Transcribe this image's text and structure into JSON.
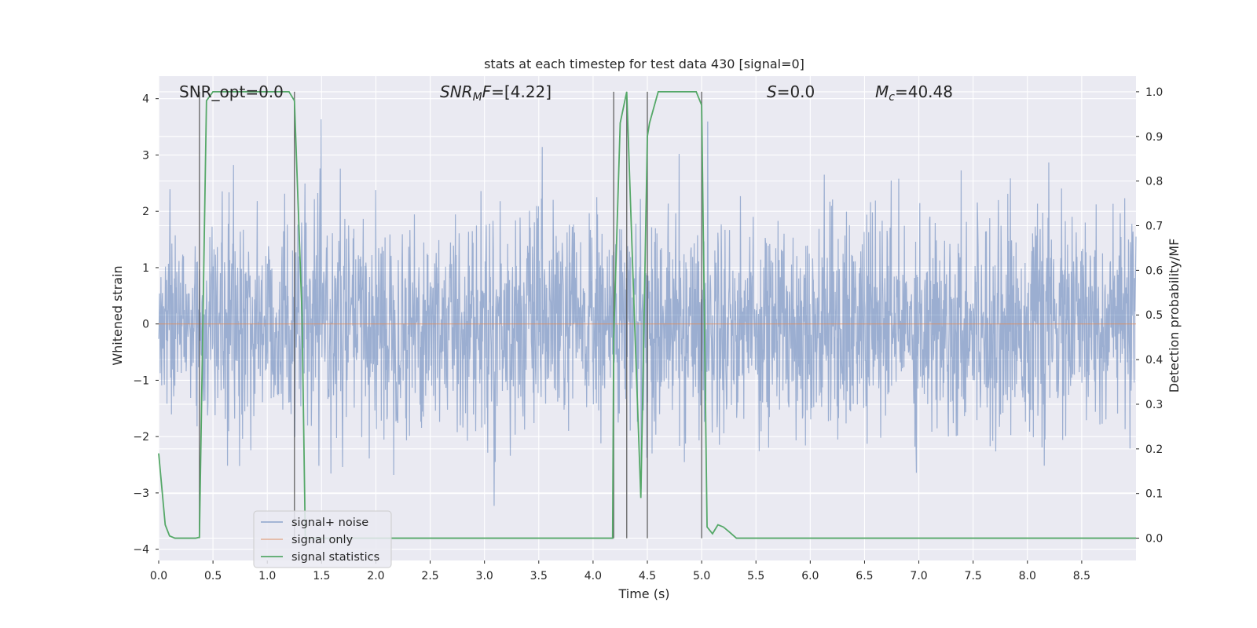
{
  "chart_data": {
    "type": "line",
    "title": "stats at each timestep for test data 430 [signal=0]",
    "xlabel": "Time (s)",
    "ylabel": "Whitened strain",
    "y2label": "Detection probability/MF",
    "xlim": [
      0.0,
      9.0
    ],
    "ylim": [
      -4.2,
      4.4
    ],
    "y2lim": [
      -0.05,
      1.035
    ],
    "xticks": [
      "0.0",
      "0.5",
      "1.0",
      "1.5",
      "2.0",
      "2.5",
      "3.0",
      "3.5",
      "4.0",
      "4.5",
      "5.0",
      "5.5",
      "6.0",
      "6.5",
      "7.0",
      "7.5",
      "8.0",
      "8.5"
    ],
    "yticks": [
      "4",
      "3",
      "2",
      "1",
      "0",
      "−1",
      "−2",
      "−3",
      "−4"
    ],
    "y2ticks": [
      "1.0",
      "0.9",
      "0.8",
      "0.7",
      "0.6",
      "0.5",
      "0.4",
      "0.3",
      "0.2",
      "0.1",
      "0.0"
    ],
    "grid": true,
    "legend_placement": "lower-left",
    "annotations": [
      {
        "id": "snr-opt",
        "text": "SNR_opt=0.0"
      },
      {
        "id": "snr-mf",
        "text": "SNR_MF=[4.22]"
      },
      {
        "id": "s",
        "text": "S=0.0"
      },
      {
        "id": "mc",
        "text": "M_c=40.48"
      }
    ],
    "vlines_x": [
      0.375,
      1.25,
      4.19,
      4.31,
      4.5,
      5.0
    ],
    "series": [
      {
        "name": "signal+ noise",
        "color": "#4c72b0",
        "description_values": "dense noise trace, mostly between -1.5 and 1.6, peaks around ±3.8",
        "noise_amplitude_band": [
          -1.5,
          1.6
        ],
        "noise_extreme": [
          -3.85,
          3.8
        ]
      },
      {
        "name": "signal only",
        "color": "#dd8452",
        "values": []
      },
      {
        "name": "signal statistics",
        "color": "#55a868",
        "axis": "right",
        "x": [
          0.0,
          0.06,
          0.1,
          0.15,
          0.25,
          0.34,
          0.375,
          0.44,
          0.5,
          0.6,
          1.0,
          1.2,
          1.25,
          1.32,
          1.35,
          2.0,
          3.0,
          4.0,
          4.18,
          4.19,
          4.25,
          4.31,
          4.38,
          4.44,
          4.5,
          4.52,
          4.6,
          4.95,
          5.0,
          5.05,
          5.1,
          5.15,
          5.2,
          5.25,
          5.32,
          6.0,
          7.0,
          8.0,
          9.0
        ],
        "y": [
          0.19,
          0.03,
          0.005,
          0.0,
          0.0,
          0.0,
          0.002,
          0.98,
          1.0,
          1.0,
          1.0,
          1.0,
          0.98,
          0.5,
          0.0,
          0.0,
          0.0,
          0.0,
          0.0,
          0.45,
          0.93,
          1.0,
          0.5,
          0.09,
          0.9,
          0.93,
          1.0,
          1.0,
          0.97,
          0.025,
          0.01,
          0.03,
          0.025,
          0.015,
          0.0,
          0.0,
          0.0,
          0.0,
          0.0
        ]
      }
    ]
  }
}
